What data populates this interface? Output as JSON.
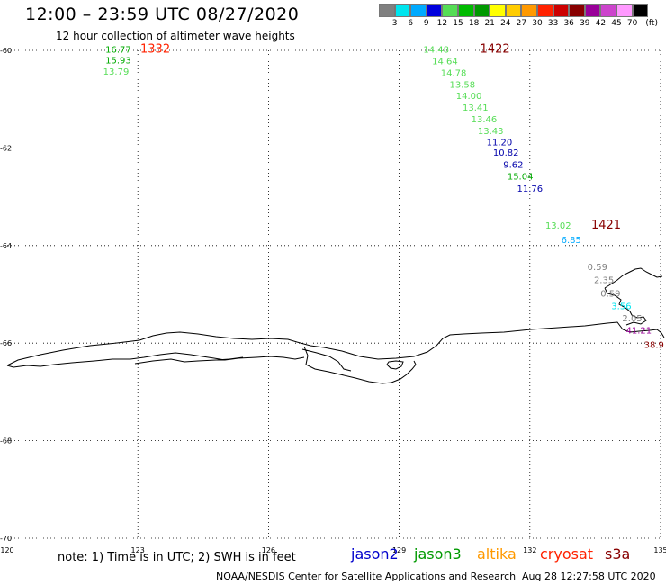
{
  "header": {
    "title": "12:00 – 23:59 UTC 08/27/2020",
    "subtitle": "12 hour collection of altimeter wave heights"
  },
  "legend": {
    "unit": "(ft)",
    "items": [
      {
        "label": "3",
        "color": "#808080"
      },
      {
        "label": "6",
        "color": "#00e5ee"
      },
      {
        "label": "9",
        "color": "#00aaff"
      },
      {
        "label": "12",
        "color": "#0000dd"
      },
      {
        "label": "15",
        "color": "#55dd55"
      },
      {
        "label": "18",
        "color": "#00bb00"
      },
      {
        "label": "21",
        "color": "#009900"
      },
      {
        "label": "24",
        "color": "#ffff00"
      },
      {
        "label": "27",
        "color": "#ffcc00"
      },
      {
        "label": "30",
        "color": "#ff9900"
      },
      {
        "label": "33",
        "color": "#ff2200"
      },
      {
        "label": "36",
        "color": "#cc0000"
      },
      {
        "label": "39",
        "color": "#880000"
      },
      {
        "label": "42",
        "color": "#990099"
      },
      {
        "label": "45",
        "color": "#cc44cc"
      },
      {
        "label": "70",
        "color": "#ff99ff"
      },
      {
        "label": "",
        "color": "#000000"
      }
    ]
  },
  "axes": {
    "lon_ticks": [
      "120",
      "123",
      "126",
      "129",
      "132",
      "135"
    ],
    "lat_ticks": [
      "-60",
      "-62",
      "-64",
      "-66",
      "-68",
      "-70"
    ]
  },
  "observations": [
    {
      "value": "16.77",
      "lat": -60.05,
      "lon": 122.55,
      "color": "#00aa00"
    },
    {
      "value": "15.93",
      "lat": -60.27,
      "lon": 122.55,
      "color": "#00aa00"
    },
    {
      "value": "13.79",
      "lat": -60.5,
      "lon": 122.5,
      "color": "#55dd55"
    },
    {
      "value": "14.48",
      "lat": -60.05,
      "lon": 129.85,
      "color": "#55dd55"
    },
    {
      "value": "14.64",
      "lat": -60.29,
      "lon": 130.05,
      "color": "#55dd55"
    },
    {
      "value": "14.78",
      "lat": -60.53,
      "lon": 130.25,
      "color": "#55dd55"
    },
    {
      "value": "13.58",
      "lat": -60.77,
      "lon": 130.45,
      "color": "#55dd55"
    },
    {
      "value": "14.00",
      "lat": -61.0,
      "lon": 130.6,
      "color": "#55dd55"
    },
    {
      "value": "13.41",
      "lat": -61.24,
      "lon": 130.75,
      "color": "#55dd55"
    },
    {
      "value": "13.46",
      "lat": -61.48,
      "lon": 130.95,
      "color": "#55dd55"
    },
    {
      "value": "13.43",
      "lat": -61.72,
      "lon": 131.1,
      "color": "#55dd55"
    },
    {
      "value": "11.20",
      "lat": -61.95,
      "lon": 131.3,
      "color": "#0000aa"
    },
    {
      "value": "10.82",
      "lat": -62.16,
      "lon": 131.45,
      "color": "#0000aa"
    },
    {
      "value": "9.62",
      "lat": -62.41,
      "lon": 131.62,
      "color": "#0000aa"
    },
    {
      "value": "15.04",
      "lat": -62.65,
      "lon": 131.78,
      "color": "#00aa00"
    },
    {
      "value": "11.76",
      "lat": -62.9,
      "lon": 132.0,
      "color": "#0000aa"
    },
    {
      "value": "13.02",
      "lat": -63.65,
      "lon": 132.65,
      "color": "#55dd55"
    },
    {
      "value": "6.85",
      "lat": -63.95,
      "lon": 132.95,
      "color": "#00aaff"
    },
    {
      "value": "0.59",
      "lat": -64.5,
      "lon": 133.55,
      "color": "#808080"
    },
    {
      "value": "2.35",
      "lat": -64.77,
      "lon": 133.7,
      "color": "#808080"
    },
    {
      "value": "0.59",
      "lat": -65.05,
      "lon": 133.85,
      "color": "#808080"
    },
    {
      "value": "3.56",
      "lat": -65.3,
      "lon": 134.1,
      "color": "#00e5ee"
    },
    {
      "value": "2.05",
      "lat": -65.55,
      "lon": 134.35,
      "color": "#808080"
    },
    {
      "value": "41.21",
      "lat": -65.8,
      "lon": 134.5,
      "color": "#990099"
    },
    {
      "value": "38.9",
      "lat": -66.1,
      "lon": 134.85,
      "color": "#880000"
    }
  ],
  "pass_labels": [
    {
      "value": "1332",
      "lat": -60.05,
      "lon": 123.4,
      "color": "#ff2200"
    },
    {
      "value": "1422",
      "lat": -60.05,
      "lon": 131.2,
      "color": "#880000"
    },
    {
      "value": "1421",
      "lat": -63.65,
      "lon": 133.75,
      "color": "#880000"
    }
  ],
  "footer": {
    "note": "note:  1) Time is in UTC;  2) SWH is in feet",
    "credit": "NOAA/NESDIS Center for Satellite Applications and Research",
    "generated": "Aug 28 12:27:58 UTC 2020"
  },
  "satellites": [
    {
      "name": "jason2",
      "color": "#0000cc"
    },
    {
      "name": "jason3",
      "color": "#009900"
    },
    {
      "name": "altika",
      "color": "#ff9900"
    },
    {
      "name": "cryosat",
      "color": "#ff2200"
    },
    {
      "name": "s3a",
      "color": "#880000"
    }
  ]
}
